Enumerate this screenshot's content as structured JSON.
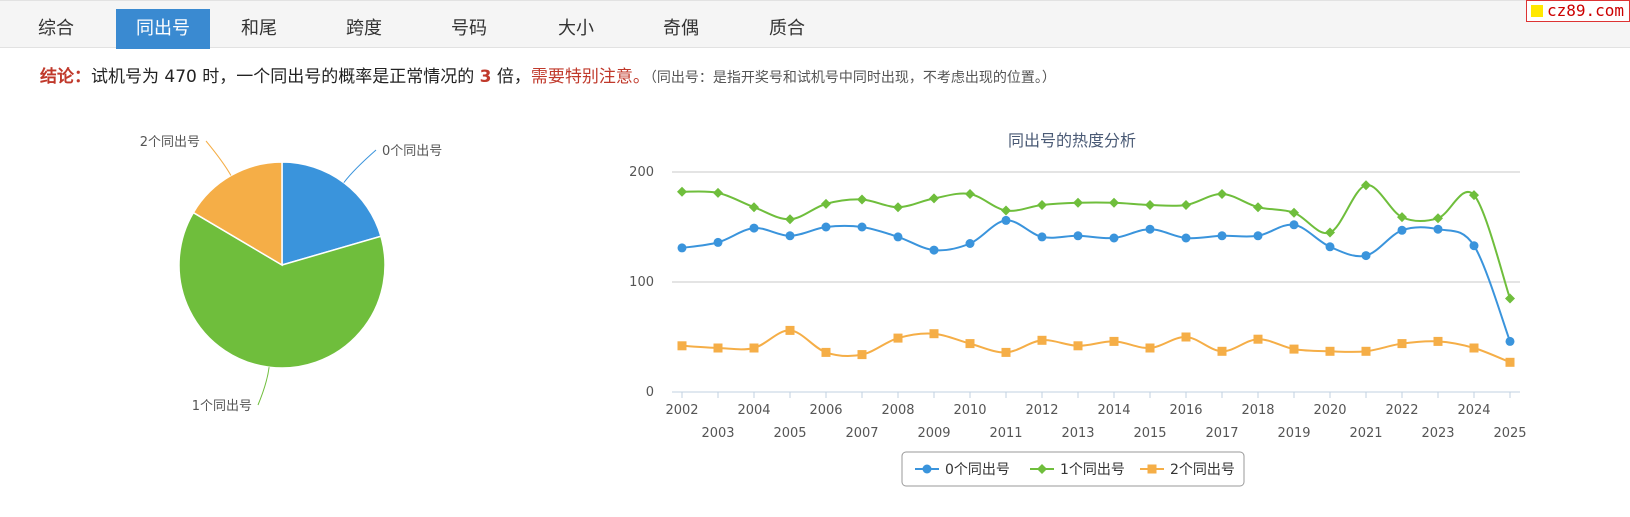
{
  "tabs": [
    {
      "label": "综合",
      "active": false
    },
    {
      "label": "同出号",
      "active": true
    },
    {
      "label": "和尾",
      "active": false
    },
    {
      "label": "跨度",
      "active": false
    },
    {
      "label": "号码",
      "active": false
    },
    {
      "label": "大小",
      "active": false
    },
    {
      "label": "奇偶",
      "active": false
    },
    {
      "label": "质合",
      "active": false
    }
  ],
  "site_badge": "cz89.com",
  "conclusion": {
    "label": "结论：",
    "text1": "试机号为 470 时，一个同出号的概率是正常情况的 ",
    "multiple": "3",
    "text2": " 倍，",
    "warning": "需要特别注意。",
    "note": "（同出号：是指开奖号和试机号中同时出现，不考虑出现的位置。）"
  },
  "colors": {
    "s0": "#3a94dc",
    "s1": "#6fbe3c",
    "s2": "#f5ae47",
    "tab_active": "#3a8ad1",
    "alert": "#c0392b"
  },
  "chart_data": [
    {
      "type": "pie",
      "labels": [
        "0个同出号",
        "1个同出号",
        "2个同出号"
      ],
      "values": [
        20.5,
        63,
        16.5
      ]
    },
    {
      "type": "line",
      "title": "同出号的热度分析",
      "categories": [
        "2002",
        "2003",
        "2004",
        "2005",
        "2006",
        "2007",
        "2008",
        "2009",
        "2010",
        "2011",
        "2012",
        "2013",
        "2014",
        "2015",
        "2016",
        "2017",
        "2018",
        "2019",
        "2020",
        "2021",
        "2022",
        "2023",
        "2024",
        "2025"
      ],
      "yticks": [
        0,
        100,
        200
      ],
      "ylim": [
        0,
        200
      ],
      "legend": "bottom-center",
      "grid": true,
      "series": [
        {
          "name": "0个同出号",
          "marker": "circle",
          "values": [
            131,
            136,
            149,
            142,
            150,
            150,
            141,
            129,
            135,
            156,
            141,
            142,
            140,
            148,
            140,
            142,
            142,
            152,
            132,
            124,
            147,
            148,
            133,
            46
          ]
        },
        {
          "name": "1个同出号",
          "marker": "diamond",
          "values": [
            182,
            181,
            168,
            157,
            171,
            175,
            168,
            176,
            180,
            165,
            170,
            172,
            172,
            170,
            170,
            180,
            168,
            163,
            145,
            188,
            159,
            158,
            179,
            85
          ]
        },
        {
          "name": "2个同出号",
          "marker": "square",
          "values": [
            42,
            40,
            40,
            56,
            36,
            34,
            49,
            53,
            44,
            36,
            47,
            42,
            46,
            40,
            50,
            37,
            48,
            39,
            37,
            37,
            44,
            46,
            40,
            27
          ]
        }
      ]
    }
  ]
}
